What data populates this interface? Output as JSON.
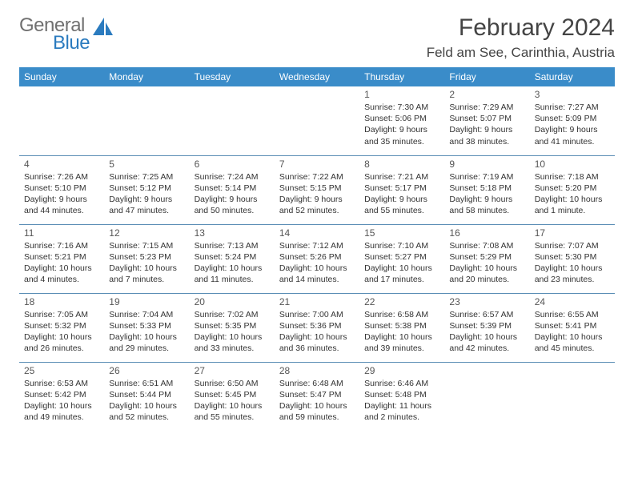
{
  "logo": {
    "part1": "General",
    "part2": "Blue"
  },
  "title": "February 2024",
  "location": "Feld am See, Carinthia, Austria",
  "colors": {
    "header_bg": "#3a8cc9",
    "header_fg": "#ffffff",
    "rule": "#5a8db5",
    "logo_gray": "#707070",
    "logo_blue": "#2b7bbf"
  },
  "weekdays": [
    "Sunday",
    "Monday",
    "Tuesday",
    "Wednesday",
    "Thursday",
    "Friday",
    "Saturday"
  ],
  "weeks": [
    [
      null,
      null,
      null,
      null,
      {
        "n": "1",
        "sunrise": "7:30 AM",
        "sunset": "5:06 PM",
        "day_h": "9",
        "day_m": "35"
      },
      {
        "n": "2",
        "sunrise": "7:29 AM",
        "sunset": "5:07 PM",
        "day_h": "9",
        "day_m": "38"
      },
      {
        "n": "3",
        "sunrise": "7:27 AM",
        "sunset": "5:09 PM",
        "day_h": "9",
        "day_m": "41"
      }
    ],
    [
      {
        "n": "4",
        "sunrise": "7:26 AM",
        "sunset": "5:10 PM",
        "day_h": "9",
        "day_m": "44"
      },
      {
        "n": "5",
        "sunrise": "7:25 AM",
        "sunset": "5:12 PM",
        "day_h": "9",
        "day_m": "47"
      },
      {
        "n": "6",
        "sunrise": "7:24 AM",
        "sunset": "5:14 PM",
        "day_h": "9",
        "day_m": "50"
      },
      {
        "n": "7",
        "sunrise": "7:22 AM",
        "sunset": "5:15 PM",
        "day_h": "9",
        "day_m": "52"
      },
      {
        "n": "8",
        "sunrise": "7:21 AM",
        "sunset": "5:17 PM",
        "day_h": "9",
        "day_m": "55"
      },
      {
        "n": "9",
        "sunrise": "7:19 AM",
        "sunset": "5:18 PM",
        "day_h": "9",
        "day_m": "58"
      },
      {
        "n": "10",
        "sunrise": "7:18 AM",
        "sunset": "5:20 PM",
        "day_h": "10",
        "day_m": "1",
        "min_word": "minute"
      }
    ],
    [
      {
        "n": "11",
        "sunrise": "7:16 AM",
        "sunset": "5:21 PM",
        "day_h": "10",
        "day_m": "4"
      },
      {
        "n": "12",
        "sunrise": "7:15 AM",
        "sunset": "5:23 PM",
        "day_h": "10",
        "day_m": "7"
      },
      {
        "n": "13",
        "sunrise": "7:13 AM",
        "sunset": "5:24 PM",
        "day_h": "10",
        "day_m": "11"
      },
      {
        "n": "14",
        "sunrise": "7:12 AM",
        "sunset": "5:26 PM",
        "day_h": "10",
        "day_m": "14"
      },
      {
        "n": "15",
        "sunrise": "7:10 AM",
        "sunset": "5:27 PM",
        "day_h": "10",
        "day_m": "17"
      },
      {
        "n": "16",
        "sunrise": "7:08 AM",
        "sunset": "5:29 PM",
        "day_h": "10",
        "day_m": "20"
      },
      {
        "n": "17",
        "sunrise": "7:07 AM",
        "sunset": "5:30 PM",
        "day_h": "10",
        "day_m": "23"
      }
    ],
    [
      {
        "n": "18",
        "sunrise": "7:05 AM",
        "sunset": "5:32 PM",
        "day_h": "10",
        "day_m": "26"
      },
      {
        "n": "19",
        "sunrise": "7:04 AM",
        "sunset": "5:33 PM",
        "day_h": "10",
        "day_m": "29"
      },
      {
        "n": "20",
        "sunrise": "7:02 AM",
        "sunset": "5:35 PM",
        "day_h": "10",
        "day_m": "33"
      },
      {
        "n": "21",
        "sunrise": "7:00 AM",
        "sunset": "5:36 PM",
        "day_h": "10",
        "day_m": "36"
      },
      {
        "n": "22",
        "sunrise": "6:58 AM",
        "sunset": "5:38 PM",
        "day_h": "10",
        "day_m": "39"
      },
      {
        "n": "23",
        "sunrise": "6:57 AM",
        "sunset": "5:39 PM",
        "day_h": "10",
        "day_m": "42"
      },
      {
        "n": "24",
        "sunrise": "6:55 AM",
        "sunset": "5:41 PM",
        "day_h": "10",
        "day_m": "45"
      }
    ],
    [
      {
        "n": "25",
        "sunrise": "6:53 AM",
        "sunset": "5:42 PM",
        "day_h": "10",
        "day_m": "49"
      },
      {
        "n": "26",
        "sunrise": "6:51 AM",
        "sunset": "5:44 PM",
        "day_h": "10",
        "day_m": "52"
      },
      {
        "n": "27",
        "sunrise": "6:50 AM",
        "sunset": "5:45 PM",
        "day_h": "10",
        "day_m": "55"
      },
      {
        "n": "28",
        "sunrise": "6:48 AM",
        "sunset": "5:47 PM",
        "day_h": "10",
        "day_m": "59"
      },
      {
        "n": "29",
        "sunrise": "6:46 AM",
        "sunset": "5:48 PM",
        "day_h": "11",
        "day_m": "2"
      },
      null,
      null
    ]
  ]
}
